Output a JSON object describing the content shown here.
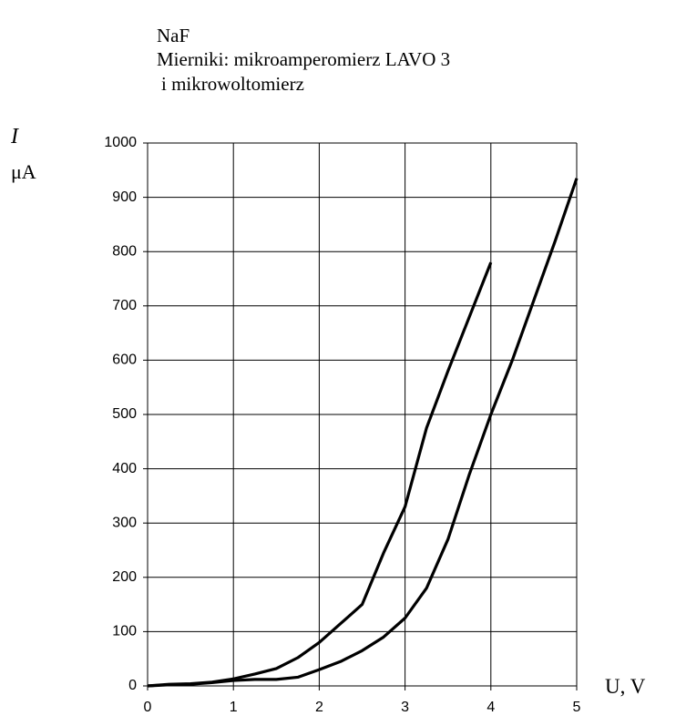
{
  "chart_data": {
    "type": "line",
    "title": "NaF",
    "subtitle": [
      "Mierniki: mikroamperomierz LAVO 3",
      "i mikrowoltomierz"
    ],
    "ylabel": [
      "I",
      "μA"
    ],
    "xlabel": "U, V",
    "xlim": [
      0,
      5
    ],
    "xticks": [
      0,
      1,
      2,
      3,
      4,
      5
    ],
    "ylim": [
      0,
      1000
    ],
    "yticks": [
      0,
      100,
      200,
      300,
      400,
      500,
      600,
      700,
      800,
      900,
      1000
    ],
    "grid": true,
    "series": [
      {
        "color": "#000000",
        "x": [
          0,
          0.25,
          0.5,
          0.75,
          1,
          1.25,
          1.5,
          1.75,
          2,
          2.25,
          2.5,
          2.75,
          3,
          3.25,
          3.5,
          3.75,
          4
        ],
        "values": [
          0,
          3,
          4,
          7,
          13,
          22,
          32,
          52,
          80,
          115,
          150,
          245,
          330,
          475,
          580,
          680,
          780
        ]
      },
      {
        "color": "#000000",
        "x": [
          0,
          0.25,
          0.5,
          0.75,
          1,
          1.25,
          1.5,
          1.75,
          2,
          2.25,
          2.5,
          2.75,
          3,
          3.25,
          3.5,
          3.75,
          4,
          4.25,
          4.5,
          4.75,
          5
        ],
        "values": [
          0,
          2,
          3,
          6,
          10,
          12,
          12,
          16,
          30,
          45,
          65,
          90,
          125,
          180,
          270,
          390,
          500,
          600,
          710,
          820,
          935
        ]
      }
    ]
  }
}
